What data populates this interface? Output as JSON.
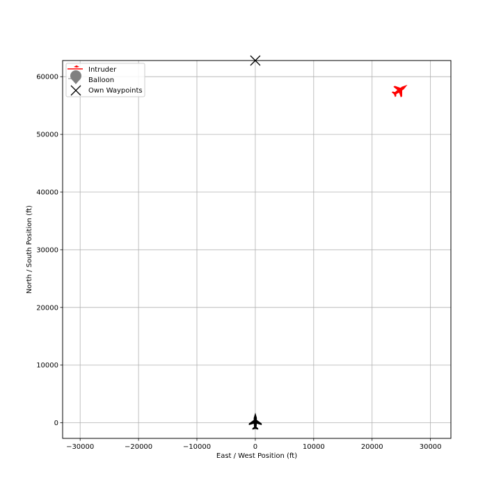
{
  "chart_data": {
    "type": "scatter",
    "title": "",
    "xlabel": "East / West Position (ft)",
    "ylabel": "North / South Position (ft)",
    "xlim": [
      -33000,
      33500
    ],
    "ylim": [
      -2700,
      62800
    ],
    "xticks": [
      -30000,
      -20000,
      -10000,
      0,
      10000,
      20000,
      30000
    ],
    "xtick_labels": [
      "−30000",
      "−20000",
      "−10000",
      "0",
      "10000",
      "20000",
      "30000"
    ],
    "yticks": [
      0,
      10000,
      20000,
      30000,
      40000,
      50000,
      60000
    ],
    "ytick_labels": [
      "0",
      "10000",
      "20000",
      "30000",
      "40000",
      "50000",
      "60000"
    ],
    "grid": true,
    "legend": {
      "placement": "top-left",
      "entries": [
        {
          "label": "Intruder",
          "marker": "aircraft",
          "color": "#ff0000"
        },
        {
          "label": "Balloon",
          "marker": "balloon",
          "color": "#808080"
        },
        {
          "label": "Own Waypoints",
          "marker": "x",
          "color": "#000000"
        }
      ]
    },
    "series": [
      {
        "name": "Intruder",
        "marker": "aircraft",
        "color": "#ff0000",
        "points": [
          {
            "x": 24800,
            "y": 57700
          }
        ],
        "heading_deg": 55
      },
      {
        "name": "Own Waypoints",
        "marker": "x",
        "color": "#000000",
        "points": [
          {
            "x": 0,
            "y": 62800
          }
        ]
      }
    ],
    "ownship": {
      "marker": "aircraft",
      "color": "#000000",
      "x": 0,
      "y": 0,
      "heading_deg": 0
    }
  }
}
